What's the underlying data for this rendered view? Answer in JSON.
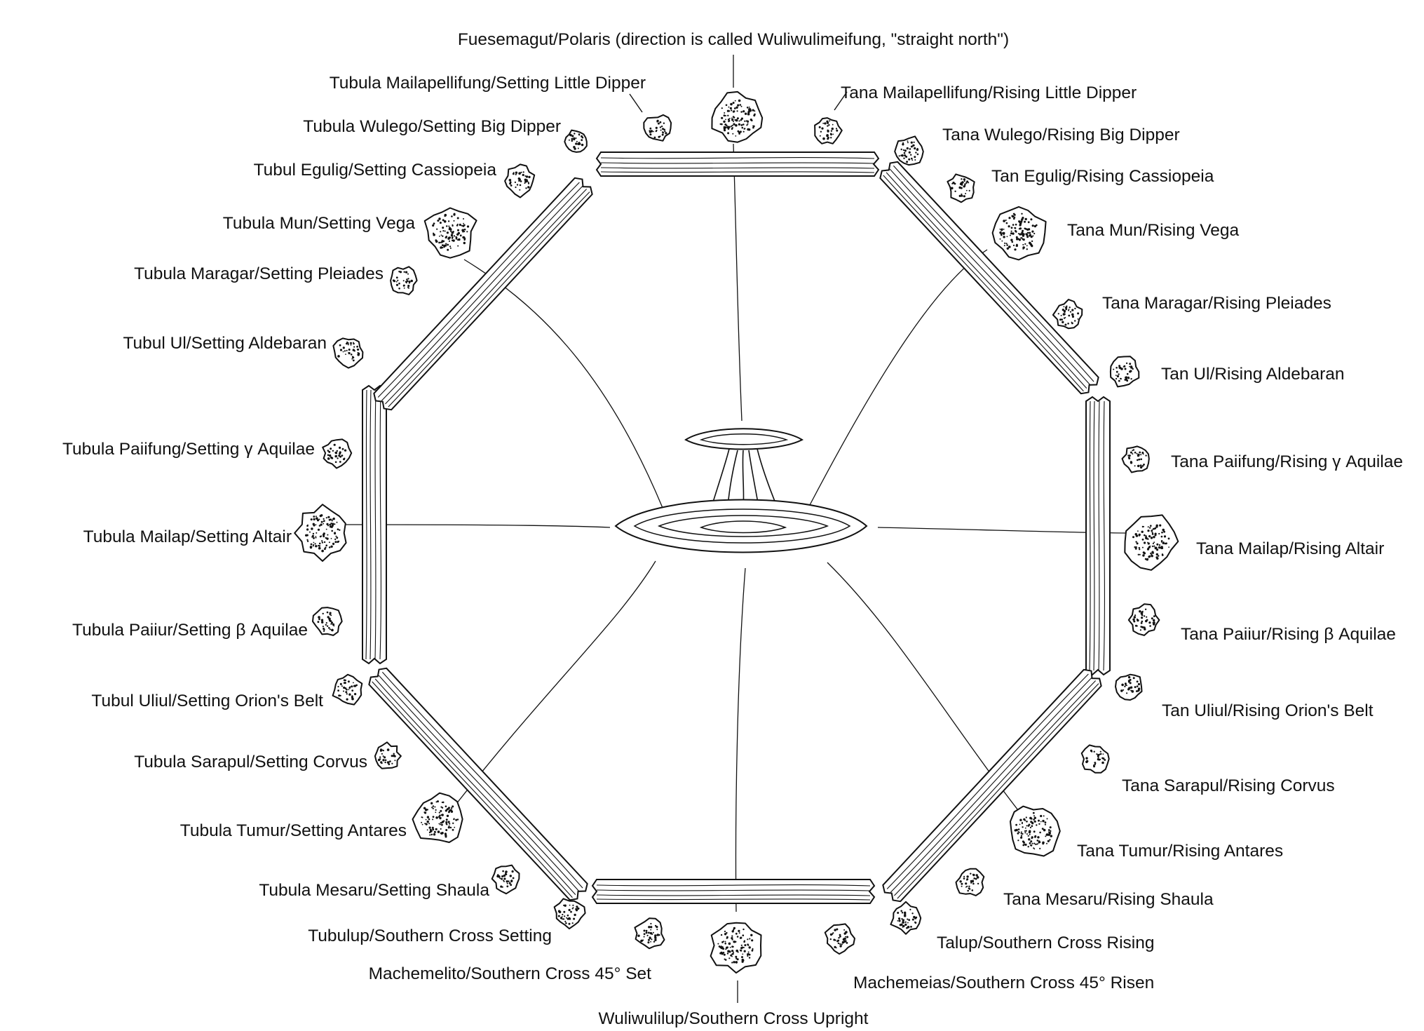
{
  "diagram": {
    "colors": {
      "ink": "#111111",
      "paper": "#ffffff"
    },
    "labels": {
      "north": "Fuesemagut/Polaris (direction is called Wuliwulimeifung, \"straight north\")",
      "south": "Wuliwulilup/Southern Cross Upright",
      "west": [
        "Tubula Mailapellifung/Setting Little Dipper",
        "Tubula Wulego/Setting Big Dipper",
        "Tubul Egulig/Setting Cassiopeia",
        "Tubula Mun/Setting Vega",
        "Tubula Maragar/Setting Pleiades",
        "Tubul Ul/Setting Aldebaran",
        "Tubula Paiifung/Setting γ Aquilae",
        "Tubula Mailap/Setting Altair",
        "Tubula Paiiur/Setting β Aquilae",
        "Tubul Uliul/Setting Orion's Belt",
        "Tubula Sarapul/Setting Corvus",
        "Tubula Tumur/Setting Antares",
        "Tubula Mesaru/Setting Shaula",
        "Tubulup/Southern Cross Setting",
        "Machemelito/Southern Cross 45° Set"
      ],
      "east": [
        "Tana Mailapellifung/Rising Little Dipper",
        "Tana Wulego/Rising Big Dipper",
        "Tan Egulig/Rising Cassiopeia",
        "Tana Mun/Rising Vega",
        "Tana Maragar/Rising Pleiades",
        "Tan Ul/Rising Aldebaran",
        "Tana Paiifung/Rising γ Aquilae",
        "Tana Mailap/Rising Altair",
        "Tana Paiiur/Rising β Aquilae",
        "Tan Uliul/Rising Orion's Belt",
        "Tana Sarapul/Rising Corvus",
        "Tana Tumur/Rising Antares",
        "Tana Mesaru/Rising Shaula",
        "Talup/Southern Cross Rising",
        "Machemeias/Southern Cross 45° Risen"
      ]
    }
  }
}
